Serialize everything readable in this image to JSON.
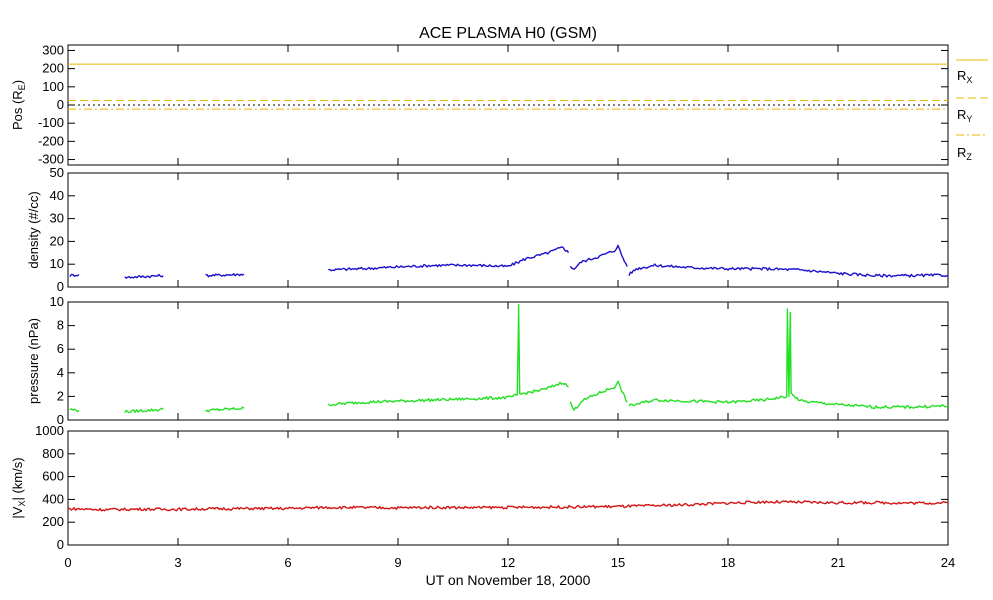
{
  "title": "ACE PLASMA H0 (GSM)",
  "xlabel": "UT on November 18, 2000",
  "x_ticks": [
    "0",
    "3",
    "6",
    "9",
    "12",
    "15",
    "18",
    "21",
    "24"
  ],
  "legend": {
    "rx": {
      "main": "R",
      "sub": "X"
    },
    "ry": {
      "main": "R",
      "sub": "Y"
    },
    "rz": {
      "main": "R",
      "sub": "Z"
    }
  },
  "panel_labels": {
    "pos": {
      "main": "Pos (R",
      "sub": "E",
      "close": ")"
    },
    "density": "density (#/cc)",
    "pressure": "pressure (nPa)",
    "vx": {
      "open": "|V",
      "sub": "X",
      "close": "| (km/s)"
    }
  },
  "colors": {
    "position": "#e8b800",
    "density": "#1a10cc",
    "pressure": "#22e022",
    "velocity": "#d41414",
    "zero_line": "#000000"
  },
  "chart_data": [
    {
      "type": "line",
      "panel": "position",
      "xlim": [
        0,
        24
      ],
      "ylim": [
        -330,
        330
      ],
      "yticks": [
        "300",
        "200",
        "100",
        "0",
        "-100",
        "-200",
        "-300"
      ],
      "series": [
        {
          "name": "RX",
          "style": "solid",
          "x": [
            0,
            24
          ],
          "values": [
            225,
            225
          ]
        },
        {
          "name": "RY",
          "style": "dashed",
          "x": [
            0,
            24
          ],
          "values": [
            25,
            25
          ]
        },
        {
          "name": "RZ",
          "style": "dash-dot",
          "x": [
            0,
            24
          ],
          "values": [
            -23,
            -23
          ]
        }
      ],
      "reference_line": {
        "value": 0,
        "style": "dotted"
      }
    },
    {
      "type": "line",
      "panel": "density",
      "xlim": [
        0,
        24
      ],
      "ylim": [
        0,
        50
      ],
      "yticks": [
        "50",
        "40",
        "30",
        "20",
        "10",
        "0"
      ],
      "segments": [
        {
          "x": [
            0.05,
            0.3
          ],
          "values": [
            5.0,
            5.5
          ]
        },
        {
          "x": [
            1.55,
            2.6
          ],
          "values": [
            4.2,
            5.0
          ]
        },
        {
          "x": [
            3.75,
            4.8
          ],
          "values": [
            5.0,
            5.6
          ]
        },
        {
          "x": [
            7.1,
            8.0,
            9.0,
            10.0,
            11.0,
            12.0,
            12.5,
            13.0,
            13.5,
            13.65
          ],
          "values": [
            7.5,
            8.0,
            8.8,
            9.5,
            9.6,
            9.0,
            12.5,
            14.5,
            17.5,
            15.0
          ]
        },
        {
          "x": [
            13.7,
            13.8,
            14.0,
            14.5,
            14.9,
            15.0,
            15.1,
            15.25
          ],
          "values": [
            9.0,
            8.0,
            11.0,
            13.5,
            16.0,
            18.0,
            14.0,
            9.0
          ]
        },
        {
          "x": [
            15.3,
            15.5,
            16.0,
            17.0,
            18.0,
            19.0,
            20.0,
            21.0,
            22.0,
            23.0,
            24.0
          ],
          "values": [
            5.5,
            8.0,
            9.5,
            8.5,
            8.0,
            8.0,
            7.5,
            6.0,
            5.0,
            5.0,
            5.2
          ]
        }
      ]
    },
    {
      "type": "line",
      "panel": "pressure",
      "xlim": [
        0,
        24
      ],
      "ylim": [
        0,
        10
      ],
      "yticks": [
        "10",
        "8",
        "6",
        "4",
        "2",
        "0"
      ],
      "segments": [
        {
          "x": [
            0.05,
            0.3
          ],
          "values": [
            0.9,
            0.8
          ]
        },
        {
          "x": [
            1.55,
            2.6
          ],
          "values": [
            0.7,
            0.9
          ]
        },
        {
          "x": [
            3.75,
            4.8
          ],
          "values": [
            0.8,
            1.0
          ]
        },
        {
          "x": [
            7.1,
            8.0,
            9.0,
            10.0,
            11.0,
            12.0,
            12.25,
            12.28,
            12.29,
            12.32,
            12.34,
            13.0,
            13.5,
            13.65
          ],
          "values": [
            1.3,
            1.5,
            1.6,
            1.7,
            1.8,
            1.9,
            2.1,
            7.0,
            9.8,
            2.2,
            2.2,
            2.6,
            3.2,
            2.8
          ]
        },
        {
          "x": [
            13.7,
            13.8,
            14.0,
            14.5,
            14.9,
            15.0,
            15.1,
            15.25
          ],
          "values": [
            1.5,
            0.8,
            1.6,
            2.3,
            2.8,
            3.2,
            2.5,
            1.5
          ]
        },
        {
          "x": [
            15.3,
            16.0,
            17.0,
            18.0,
            19.0,
            19.6,
            19.62,
            19.66,
            19.7,
            19.72,
            19.8,
            20.0,
            21.0,
            22.0,
            23.0,
            24.0
          ],
          "values": [
            1.2,
            1.7,
            1.6,
            1.5,
            1.7,
            2.0,
            9.4,
            2.0,
            9.1,
            2.2,
            2.0,
            1.6,
            1.3,
            1.1,
            1.1,
            1.2
          ]
        }
      ]
    },
    {
      "type": "line",
      "panel": "vx",
      "xlim": [
        0,
        24
      ],
      "ylim": [
        0,
        1000
      ],
      "yticks": [
        "1000",
        "800",
        "600",
        "400",
        "200",
        "0"
      ],
      "segments": [
        {
          "x": [
            0,
            1,
            2,
            3,
            4,
            5,
            6,
            7,
            8,
            9,
            10,
            11,
            12,
            13,
            14,
            15,
            16,
            17,
            18,
            19,
            20,
            21,
            22,
            23,
            24
          ],
          "values": [
            318,
            310,
            315,
            313,
            318,
            320,
            320,
            330,
            328,
            326,
            330,
            328,
            330,
            332,
            335,
            338,
            345,
            355,
            368,
            378,
            375,
            370,
            372,
            368,
            370
          ]
        }
      ]
    }
  ]
}
